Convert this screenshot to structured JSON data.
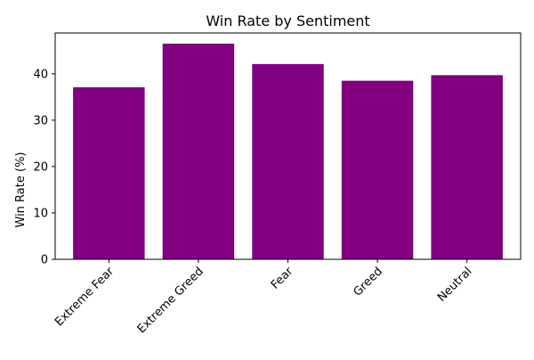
{
  "chart_data": {
    "type": "bar",
    "title": "Win Rate by Sentiment",
    "xlabel": "",
    "ylabel": "Win Rate (%)",
    "categories": [
      "Extreme Fear",
      "Extreme Greed",
      "Fear",
      "Greed",
      "Neutral"
    ],
    "values": [
      37.1,
      46.5,
      42.1,
      38.5,
      39.7
    ],
    "ylim": [
      0,
      48.8
    ],
    "yticks": [
      0,
      10,
      20,
      30,
      40
    ],
    "grid": false,
    "legend": "none",
    "colors": {
      "bar": "#800080",
      "axis": "#000000",
      "background": "#ffffff"
    }
  }
}
